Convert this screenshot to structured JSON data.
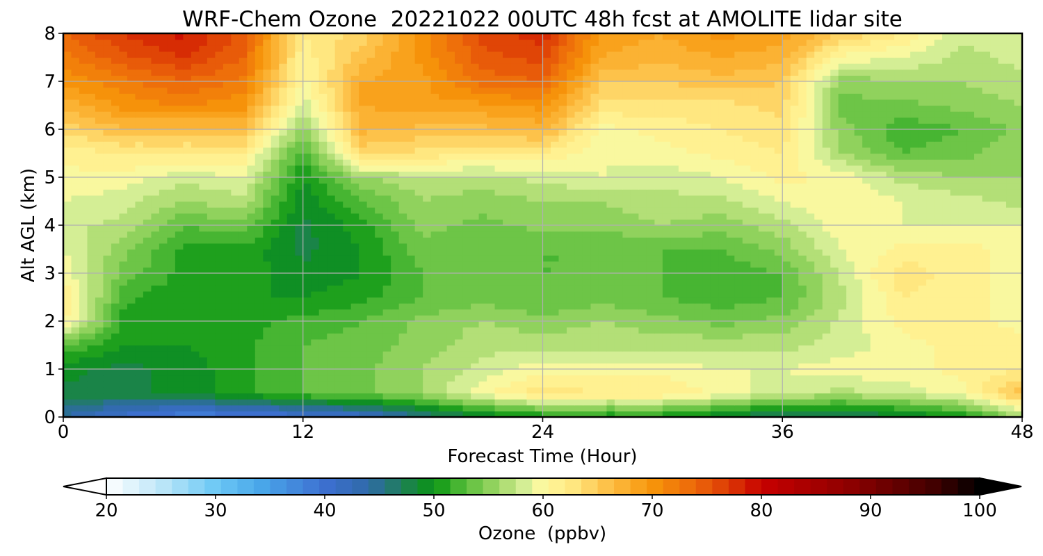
{
  "chart_data": {
    "type": "heatmap",
    "title": "WRF-Chem Ozone  20221022 00UTC 48h fcst at AMOLITE lidar site",
    "xlabel": "Forecast Time (Hour)",
    "ylabel": "Alt AGL (km)",
    "xlim": [
      0,
      48
    ],
    "ylim": [
      0,
      8
    ],
    "x_ticks": [
      0,
      12,
      24,
      36,
      48
    ],
    "y_ticks": [
      0,
      1,
      2,
      3,
      4,
      5,
      6,
      7,
      8
    ],
    "grid": true,
    "x_hours": [
      0,
      3,
      6,
      9,
      12,
      15,
      18,
      21,
      24,
      27,
      30,
      33,
      36,
      39,
      42,
      45,
      48
    ],
    "y_km": [
      0,
      0.5,
      1,
      1.5,
      2,
      2.5,
      3,
      3.5,
      4,
      4.5,
      5,
      5.5,
      6,
      6.5,
      7,
      7.5,
      8
    ],
    "z_ppbv": [
      [
        44,
        40,
        38,
        38,
        40,
        41,
        45,
        48,
        50,
        50,
        50,
        48,
        46,
        46,
        48,
        50,
        56
      ],
      [
        48,
        48,
        49,
        51,
        53,
        54,
        56,
        60,
        63,
        62,
        62,
        60,
        58,
        57,
        58,
        60,
        66
      ],
      [
        49,
        48,
        49,
        51,
        53,
        54,
        56,
        58,
        60,
        60,
        60,
        59,
        59,
        60,
        60,
        61,
        62
      ],
      [
        53,
        50,
        50,
        51,
        53,
        54,
        55,
        57,
        57,
        57,
        57,
        57,
        57,
        58,
        60,
        61,
        61
      ],
      [
        61,
        51,
        50,
        51,
        52,
        53,
        55,
        56,
        55,
        56,
        55,
        54,
        55,
        58,
        61,
        61,
        60
      ],
      [
        62,
        52,
        50,
        50,
        50,
        51,
        53,
        54,
        53,
        54,
        53,
        52,
        53,
        57,
        62,
        61,
        60
      ],
      [
        60,
        54,
        51,
        51,
        49,
        50,
        53,
        54,
        53,
        53,
        53,
        52,
        53,
        58,
        63,
        61,
        60
      ],
      [
        59,
        55,
        51,
        51,
        48,
        50,
        54,
        53,
        53,
        53,
        53,
        53,
        55,
        59,
        61,
        61,
        60
      ],
      [
        58,
        57,
        53,
        54,
        48,
        51,
        55,
        54,
        55,
        55,
        56,
        55,
        57,
        60,
        59,
        59,
        59
      ],
      [
        59,
        58,
        56,
        57,
        49,
        53,
        56,
        55,
        56,
        56,
        57,
        57,
        59,
        60,
        59,
        58,
        57
      ],
      [
        60,
        60,
        58,
        59,
        50,
        56,
        57,
        57,
        58,
        59,
        58,
        59,
        61,
        60,
        57,
        56,
        56
      ],
      [
        61,
        62,
        62,
        62,
        52,
        64,
        63,
        62,
        62,
        59,
        60,
        61,
        62,
        56,
        53,
        54,
        56
      ],
      [
        64,
        66,
        66,
        66,
        55,
        67,
        66,
        66,
        67,
        60,
        61,
        62,
        63,
        55,
        52,
        53,
        55
      ],
      [
        67,
        70,
        71,
        70,
        58,
        68,
        69,
        69,
        70,
        63,
        63,
        63,
        64,
        54,
        54,
        55,
        56
      ],
      [
        70,
        72,
        74,
        72,
        60,
        68,
        69,
        73,
        74,
        65,
        65,
        66,
        65,
        55,
        56,
        56,
        57
      ],
      [
        72,
        75,
        77,
        74,
        61,
        66,
        70,
        75,
        76,
        68,
        67,
        68,
        67,
        60,
        59,
        57,
        58
      ],
      [
        74,
        77,
        79,
        75,
        62,
        64,
        70,
        76,
        78,
        69,
        68,
        70,
        69,
        65,
        62,
        58,
        58
      ]
    ],
    "colorbar": {
      "label": "Ozone  (ppbv)",
      "ticks": [
        20,
        30,
        40,
        50,
        60,
        70,
        80,
        90,
        100
      ],
      "min": 20,
      "max": 100,
      "extend": "both",
      "color_stops": [
        {
          "v": 20,
          "c": "#ffffff"
        },
        {
          "v": 25,
          "c": "#bde6f8"
        },
        {
          "v": 30,
          "c": "#6dc8f5"
        },
        {
          "v": 34,
          "c": "#4aa8ea"
        },
        {
          "v": 40,
          "c": "#3d6fd1"
        },
        {
          "v": 44,
          "c": "#2f6aa8"
        },
        {
          "v": 47,
          "c": "#1f7e5a"
        },
        {
          "v": 50,
          "c": "#0a9512"
        },
        {
          "v": 53,
          "c": "#5bbf3c"
        },
        {
          "v": 56,
          "c": "#a2d868"
        },
        {
          "v": 58.5,
          "c": "#d9f09a"
        },
        {
          "v": 60,
          "c": "#fff9a0"
        },
        {
          "v": 63,
          "c": "#ffe57d"
        },
        {
          "v": 66,
          "c": "#fdbf45"
        },
        {
          "v": 70,
          "c": "#f7950a"
        },
        {
          "v": 74,
          "c": "#ec660a"
        },
        {
          "v": 77,
          "c": "#dc3a05"
        },
        {
          "v": 80,
          "c": "#c70000"
        },
        {
          "v": 88,
          "c": "#8e0000"
        },
        {
          "v": 96,
          "c": "#400000"
        },
        {
          "v": 100,
          "c": "#000000"
        }
      ]
    }
  }
}
